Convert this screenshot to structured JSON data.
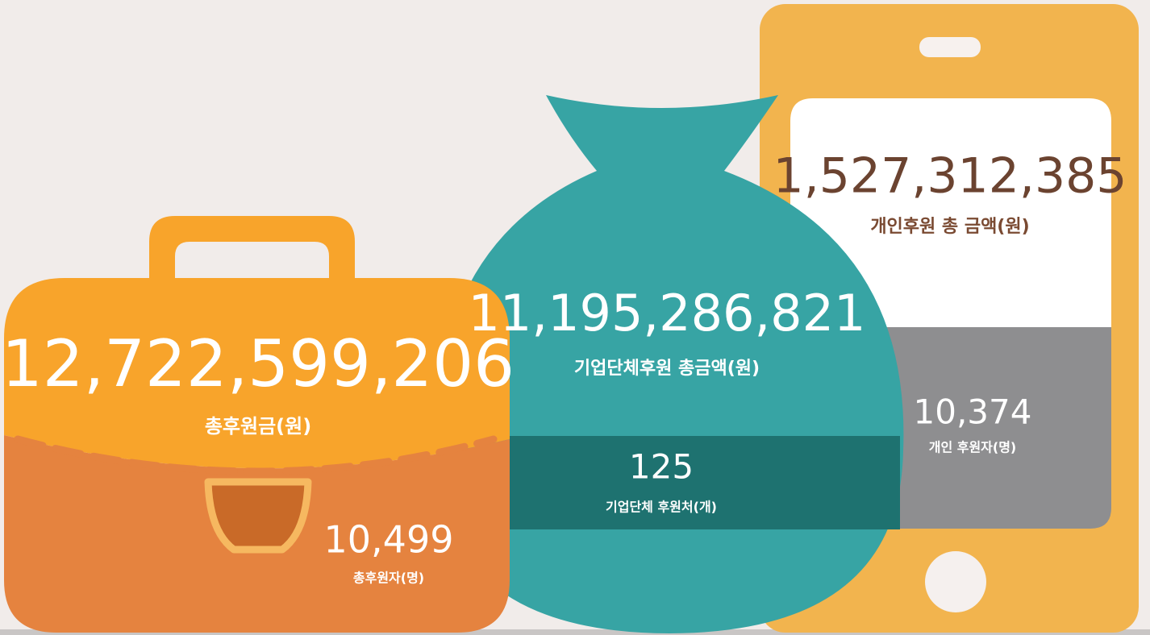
{
  "total": {
    "amount": "12,722,599,206",
    "amount_label": "총후원금(원)",
    "donors": "10,499",
    "donors_label": "총후원자(명)"
  },
  "corporate": {
    "amount": "11,195,286,821",
    "amount_label": "기업단체후원 총금액(원)",
    "count": "125",
    "count_label": "기업단체 후원처(개)"
  },
  "individual": {
    "amount": "1,527,312,385",
    "amount_label": "개인후원 총 금액(원)",
    "donors": "10,374",
    "donors_label": "개인 후원자(명)"
  }
}
